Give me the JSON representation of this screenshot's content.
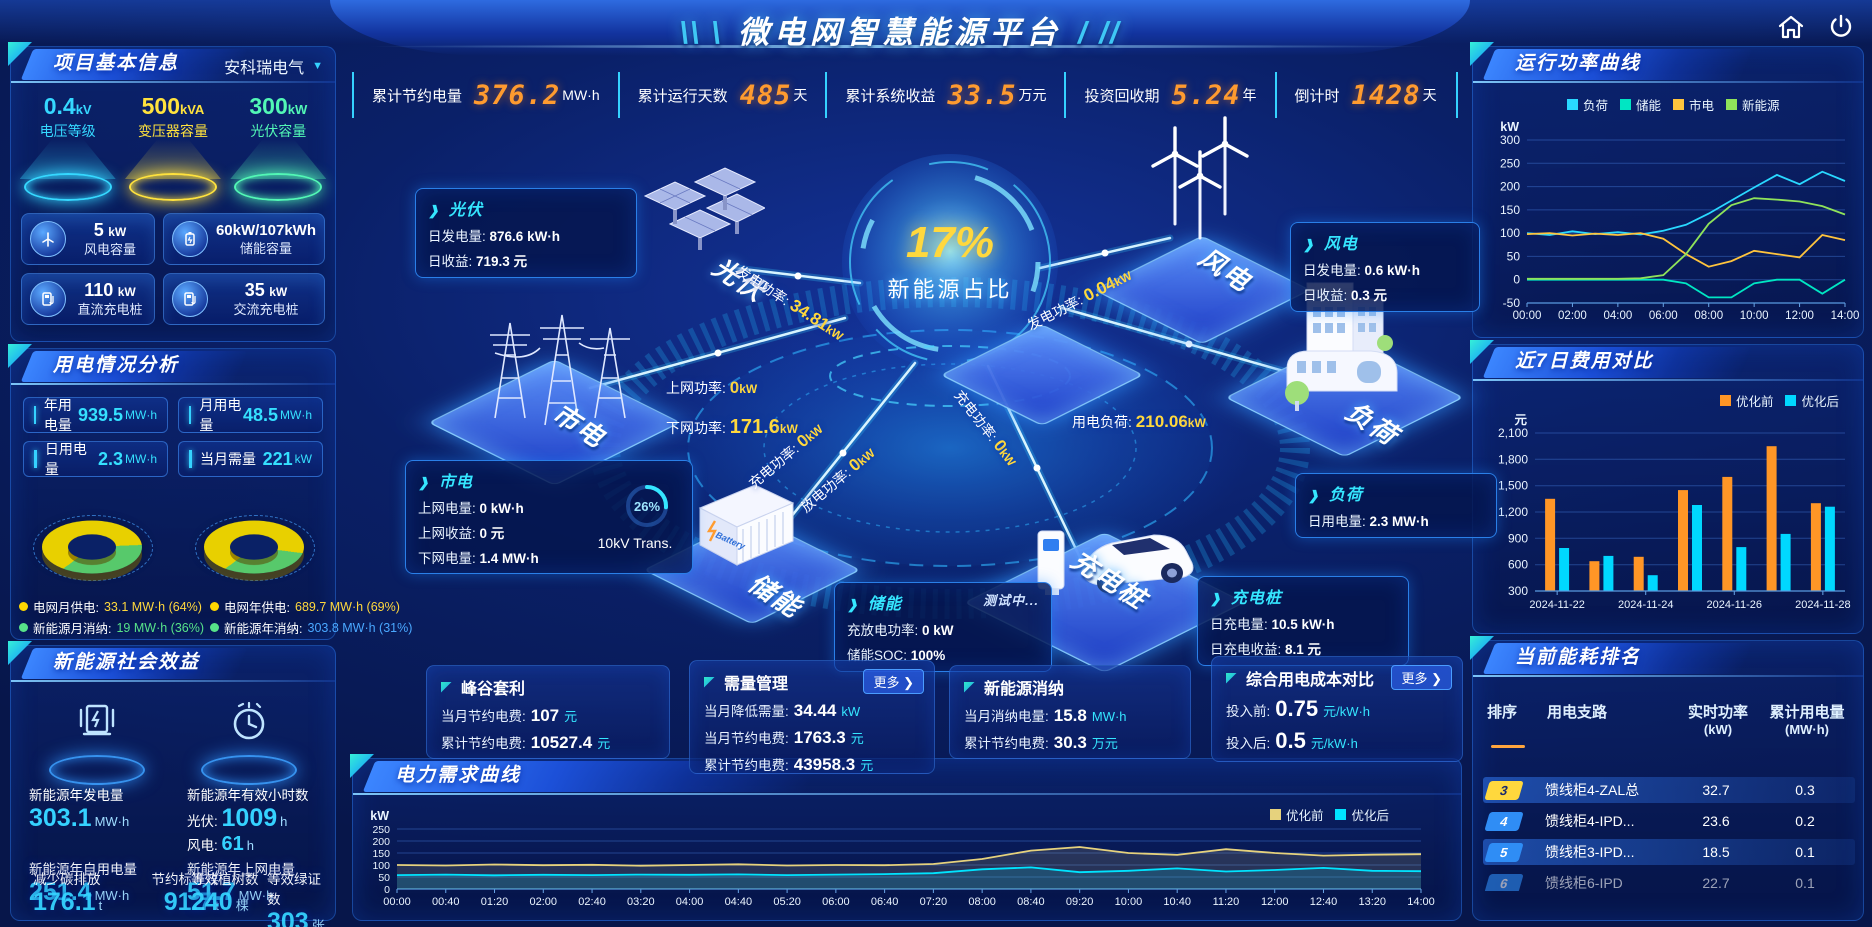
{
  "app": {
    "title": "微电网智慧能源平台",
    "deco_left": "\\\\ \\",
    "deco_right": "/ //",
    "icons": {
      "home": "home-icon",
      "power": "power-icon"
    }
  },
  "topbar": {
    "stats": [
      {
        "label": "累计节约电量",
        "value": "376.2",
        "unit": "MW·h"
      },
      {
        "label": "累计运行天数",
        "value": "485",
        "unit": "天"
      },
      {
        "label": "累计系统收益",
        "value": "33.5",
        "unit": "万元"
      },
      {
        "label": "投资回收期",
        "value": "5.24",
        "unit": "年"
      },
      {
        "label": "倒计时",
        "value": "1428",
        "unit": "天"
      }
    ]
  },
  "project": {
    "title": "项目基本信息",
    "company": "安科瑞电气",
    "spotlights": [
      {
        "value": "0.4",
        "unit": "kV",
        "label": "电压等级",
        "color": "#35d8ff"
      },
      {
        "value": "500",
        "unit": "kVA",
        "label": "变压器容量",
        "color": "#ffe23d"
      },
      {
        "value": "300",
        "unit": "kW",
        "label": "光伏容量",
        "color": "#52f7b5"
      }
    ],
    "cards": [
      {
        "value": "5",
        "unit": "kW",
        "label": "风电容量",
        "icon": "wind-turbine-icon"
      },
      {
        "value": "60kW/107kWh",
        "unit": "",
        "label": "储能容量",
        "icon": "battery-icon"
      },
      {
        "value": "110",
        "unit": "kW",
        "label": "直流充电桩",
        "icon": "dc-charger-icon"
      },
      {
        "value": "35",
        "unit": "kW",
        "label": "交流充电桩",
        "icon": "ac-charger-icon"
      }
    ]
  },
  "usage": {
    "title": "用电情况分析",
    "cards": [
      {
        "label": "年用电量",
        "value": "939.5",
        "unit": "MW·h"
      },
      {
        "label": "月用电量",
        "value": "48.5",
        "unit": "MW·h"
      },
      {
        "label": "日用电量",
        "value": "2.3",
        "unit": "MW·h"
      },
      {
        "label": "当月需量",
        "value": "221",
        "unit": "kW"
      }
    ],
    "month_donut": {
      "slices": [
        {
          "label": "电网月供电:",
          "text": "33.1 MW·h (64%)",
          "pct": 64,
          "color": "#e8d000"
        },
        {
          "label": "新能源月消纳:",
          "text": "19 MW·h (36%)",
          "pct": 36,
          "color": "#57c96b"
        }
      ]
    },
    "year_donut": {
      "slices": [
        {
          "label": "电网年供电:",
          "text": "689.7 MW·h (69%)",
          "pct": 69,
          "color": "#e8d000"
        },
        {
          "label": "新能源年消纳:",
          "text": "303.8 MW·h (31%)",
          "pct": 31,
          "color": "#57c96b"
        }
      ]
    }
  },
  "benefits": {
    "title": "新能源社会效益",
    "gen": {
      "label": "新能源年发电量",
      "value": "303.1",
      "unit": "MW·h"
    },
    "hours": {
      "label": "新能源年有效小时数",
      "pv_k": "光伏:",
      "pv_v": "1009",
      "pv_u": "h",
      "wind_k": "风电:",
      "wind_v": "61",
      "wind_u": "h"
    },
    "self_use": {
      "label": "新能源年自用电量",
      "value": "251.4",
      "unit": "MW·h"
    },
    "carbon": {
      "label": "减少碳排放",
      "value": "176.1",
      "unit": "t"
    },
    "coal": {
      "label": "节约标准煤",
      "value": "91.7",
      "unit": "t"
    },
    "feed_in": {
      "label": "新能源年上网电量",
      "value": "51.7",
      "unit": "MW·h"
    },
    "trees": {
      "label": "等效植树数",
      "value": "240",
      "unit": "棵"
    },
    "certs": {
      "label": "等效绿证数",
      "value": "303",
      "unit": "张"
    }
  },
  "diagram": {
    "center_pct": "17%",
    "center_label": "新能源占比",
    "gauge": {
      "pct": "26%",
      "value": 26,
      "label": "10kV Trans."
    },
    "nodes": {
      "pv": "光伏",
      "wind": "风电",
      "grid": "市电",
      "storage": "储能",
      "charger": "充电桩",
      "load": "负荷"
    },
    "flows": {
      "pv_power": {
        "label": "发电功率:",
        "value": "34.81",
        "unit": "kW"
      },
      "wind_power": {
        "label": "发电功率:",
        "value": "0.04",
        "unit": "kW"
      },
      "feed_in": {
        "label": "上网功率:",
        "value": "0",
        "unit": "kW"
      },
      "draw": {
        "label": "下网功率:",
        "value": "171.6",
        "unit": "kW"
      },
      "st_charge": {
        "label": "充电功率:",
        "value": "0",
        "unit": "kW"
      },
      "st_discharge": {
        "label": "放电功率:",
        "value": "0",
        "unit": "kW"
      },
      "ev_charge": {
        "label": "充电功率:",
        "value": "0",
        "unit": "kW"
      },
      "load_power": {
        "label": "用电负荷:",
        "value": "210.06",
        "unit": "kW"
      }
    },
    "boxes": {
      "pv": {
        "title": "光伏",
        "rows": [
          {
            "k": "日发电量:",
            "v": "876.6 kW·h"
          },
          {
            "k": "日收益:",
            "v": "719.3 元"
          }
        ]
      },
      "wind": {
        "title": "风电",
        "rows": [
          {
            "k": "日发电量:",
            "v": "0.6 kW·h"
          },
          {
            "k": "日收益:",
            "v": "0.3 元"
          }
        ]
      },
      "grid": {
        "title": "市电",
        "rows": [
          {
            "k": "上网电量:",
            "v": "0 kW·h"
          },
          {
            "k": "上网收益:",
            "v": "0 元"
          },
          {
            "k": "下网电量:",
            "v": "1.4 MW·h"
          }
        ]
      },
      "storage": {
        "title": "储能",
        "badge": "测试中...",
        "rows": [
          {
            "k": "充放电功率:",
            "v": "0 kW"
          },
          {
            "k": "储能SOC:",
            "v": "100%"
          }
        ]
      },
      "charger": {
        "title": "充电桩",
        "rows": [
          {
            "k": "日充电量:",
            "v": "10.5 kW·h"
          },
          {
            "k": "日充电收益:",
            "v": "8.1 元"
          }
        ]
      },
      "load": {
        "title": "负荷",
        "rows": [
          {
            "k": "日用电量:",
            "v": "2.3 MW·h"
          }
        ]
      }
    }
  },
  "mini_panels": [
    {
      "title": "峰谷套利",
      "more": "",
      "rows": [
        {
          "k": "当月节约电费:",
          "v": "107",
          "u": "元"
        },
        {
          "k": "累计节约电费:",
          "v": "10527.4",
          "u": "元"
        }
      ]
    },
    {
      "title": "需量管理",
      "more": "更多",
      "rows": [
        {
          "k": "当月降低需量:",
          "v": "34.44",
          "u": "kW"
        },
        {
          "k": "当月节约电费:",
          "v": "1763.3",
          "u": "元"
        },
        {
          "k": "累计节约电费:",
          "v": "43958.3",
          "u": "元"
        }
      ]
    },
    {
      "title": "新能源消纳",
      "more": "",
      "rows": [
        {
          "k": "当月消纳电量:",
          "v": "15.8",
          "u": "MW·h"
        },
        {
          "k": "累计节约电费:",
          "v": "30.3",
          "u": "万元"
        }
      ]
    },
    {
      "title": "综合用电成本对比",
      "more": "更多",
      "rows": [
        {
          "k": "投入前:",
          "v": "0.75",
          "u": "元/kW·h"
        },
        {
          "k": "投入后:",
          "v": "0.5",
          "u": "元/kW·h"
        }
      ]
    }
  ],
  "chart_data": [
    {
      "id": "power-curve",
      "type": "line",
      "title": "运行功率曲线",
      "ylabel": "kW",
      "ylim": [
        -50,
        300
      ],
      "yticks": [
        300,
        250,
        200,
        150,
        100,
        50,
        0,
        -50
      ],
      "x_labels": [
        "00:00",
        "02:00",
        "04:00",
        "06:00",
        "08:00",
        "10:00",
        "12:00",
        "14:00"
      ],
      "legend_position": "top",
      "series": [
        {
          "name": "负荷",
          "color": "#29d8ff",
          "values": [
            100,
            96,
            104,
            98,
            102,
            97,
            105,
            118,
            142,
            170,
            198,
            225,
            205,
            232,
            212
          ]
        },
        {
          "name": "储能",
          "color": "#00e6c3",
          "values": [
            0,
            0,
            0,
            0,
            0,
            0,
            0,
            -8,
            -38,
            -38,
            -8,
            0,
            0,
            -30,
            0
          ]
        },
        {
          "name": "市电",
          "color": "#ffc43d",
          "values": [
            98,
            100,
            95,
            99,
            96,
            100,
            88,
            55,
            28,
            40,
            62,
            55,
            48,
            96,
            85
          ]
        },
        {
          "name": "新能源",
          "color": "#8fe35a",
          "values": [
            2,
            2,
            2,
            2,
            2,
            3,
            10,
            55,
            120,
            160,
            175,
            172,
            168,
            158,
            140
          ]
        }
      ]
    },
    {
      "id": "cost-compare",
      "type": "bar",
      "title": "近7日费用对比",
      "ylabel": "元",
      "ylim": [
        300,
        2100
      ],
      "yticks": [
        2100,
        1800,
        1500,
        1200,
        900,
        600,
        300
      ],
      "categories": [
        "2024-11-22",
        "2024-11-23",
        "2024-11-24",
        "2024-11-25",
        "2024-11-26",
        "2024-11-27",
        "2024-11-28"
      ],
      "x_labels": [
        "2024-11-22",
        "2024-11-24",
        "2024-11-26",
        "2024-11-28"
      ],
      "legend_position": "top-right",
      "series": [
        {
          "name": "优化前",
          "color": "#ff9626",
          "values": [
            1350,
            640,
            690,
            1450,
            1600,
            1950,
            1300
          ]
        },
        {
          "name": "优化后",
          "color": "#00d8ff",
          "values": [
            790,
            700,
            480,
            1280,
            800,
            950,
            1260
          ]
        }
      ]
    },
    {
      "id": "demand-curve",
      "type": "line",
      "title": "电力需求曲线",
      "ylabel": "kW",
      "ylim": [
        0,
        250
      ],
      "yticks": [
        250,
        200,
        150,
        100,
        50,
        0
      ],
      "x_labels": [
        "00:00",
        "00:40",
        "01:20",
        "02:00",
        "02:40",
        "03:20",
        "04:00",
        "04:40",
        "05:20",
        "06:00",
        "06:40",
        "07:20",
        "08:00",
        "08:40",
        "09:20",
        "10:00",
        "10:40",
        "11:20",
        "12:00",
        "12:40",
        "13:20",
        "14:00"
      ],
      "legend_position": "top-right",
      "series": [
        {
          "name": "优化前",
          "color": "#e6d27d",
          "values": [
            100,
            98,
            102,
            99,
            101,
            97,
            100,
            103,
            98,
            100,
            99,
            104,
            125,
            160,
            175,
            150,
            142,
            166,
            150,
            139,
            143,
            145
          ]
        },
        {
          "name": "优化后",
          "color": "#00e4ff",
          "values": [
            58,
            60,
            57,
            59,
            58,
            60,
            59,
            61,
            58,
            60,
            62,
            66,
            82,
            90,
            70,
            76,
            86,
            73,
            79,
            88,
            76,
            74
          ]
        }
      ]
    }
  ],
  "ranking": {
    "title": "当前能耗排名",
    "headers": {
      "rank": "排序",
      "branch": "用电支路",
      "power": "实时功率",
      "power_u": "(kW)",
      "energy": "累计用电量",
      "energy_u": "(MW·h)"
    },
    "rows": [
      {
        "rank": "3",
        "branch": "馈线柜4-ZAL总",
        "power": "32.7",
        "energy": "0.3"
      },
      {
        "rank": "4",
        "branch": "馈线柜4-IPD...",
        "power": "23.6",
        "energy": "0.2"
      },
      {
        "rank": "5",
        "branch": "馈线柜3-IPD...",
        "power": "18.5",
        "energy": "0.1"
      },
      {
        "rank": "6",
        "branch": "馈线柜6-IPD",
        "power": "22.7",
        "energy": "0.1"
      }
    ]
  }
}
